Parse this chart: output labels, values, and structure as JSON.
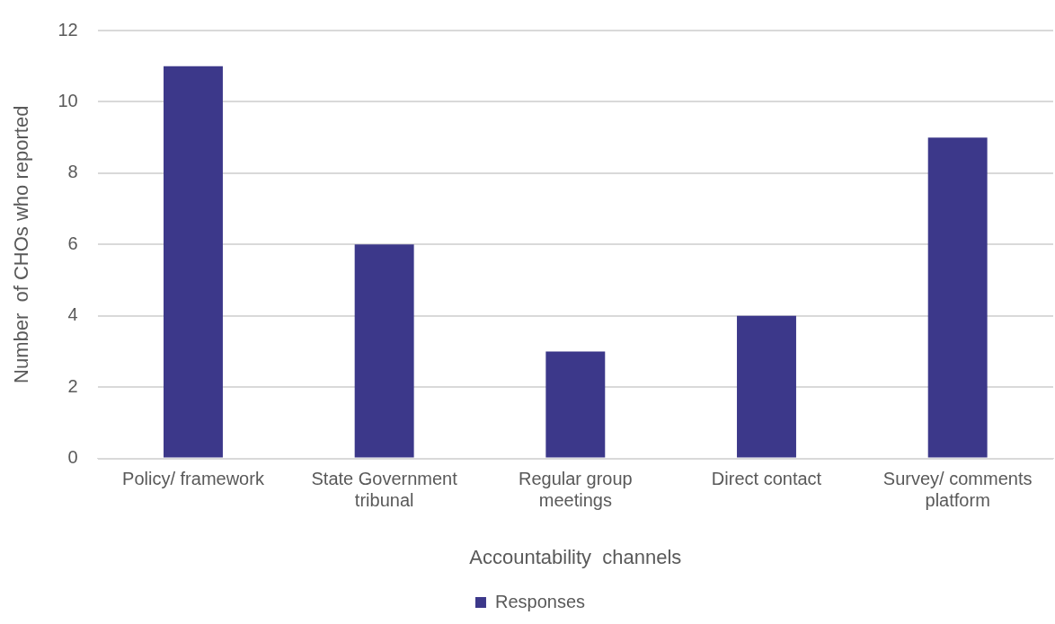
{
  "chart_data": {
    "type": "bar",
    "xlabel": "Accountability  channels",
    "ylabel": "Number  of CHOs who reported",
    "categories": [
      "Policy/ framework",
      "State Government tribunal",
      "Regular group meetings",
      "Direct contact",
      "Survey/ comments platform"
    ],
    "series": [
      {
        "name": "Responses",
        "color": "#3c388a",
        "values": [
          11,
          6,
          3,
          4,
          9
        ]
      }
    ],
    "ylim": [
      0,
      12
    ],
    "yticks": [
      0,
      2,
      4,
      6,
      8,
      10,
      12
    ],
    "grid": "y",
    "legend": "bottom"
  }
}
